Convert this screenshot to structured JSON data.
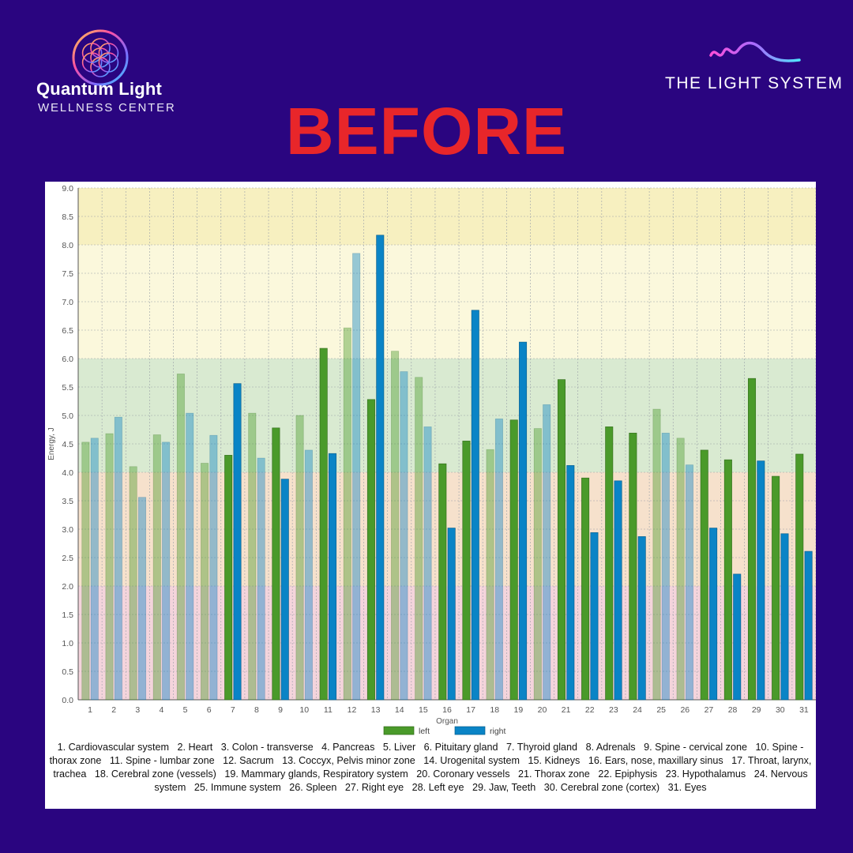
{
  "logos": {
    "left": {
      "name": "Quantum Light",
      "subtitle": "WELLNESS CENTER"
    },
    "right": {
      "name": "THE LIGHT SYSTEM"
    }
  },
  "headline": "BEFORE",
  "colors": {
    "background": "#2a0580",
    "headline": "#e8262a",
    "left_series": "#4a9a2a",
    "right_series": "#0a84c6",
    "zone_yellow_dark": "#f7f0c0",
    "zone_yellow_light": "#fbf8dc",
    "zone_green": "#d9ead1",
    "zone_orange": "#f6e1cc",
    "zone_pink": "#f4d4dc"
  },
  "chart_data": {
    "type": "bar",
    "ylabel": "Energy, J",
    "xlabel": "Organ",
    "ylim": [
      0,
      9
    ],
    "yticks": [
      "0.0",
      "0.5",
      "1.0",
      "1.5",
      "2.0",
      "2.5",
      "3.0",
      "3.5",
      "4.0",
      "4.5",
      "5.0",
      "5.5",
      "6.0",
      "6.5",
      "7.0",
      "7.5",
      "8.0",
      "8.5",
      "9.0"
    ],
    "grid": true,
    "legend_position": "bottom-center",
    "categories": [
      "1",
      "2",
      "3",
      "4",
      "5",
      "6",
      "7",
      "8",
      "9",
      "10",
      "11",
      "12",
      "13",
      "14",
      "15",
      "16",
      "17",
      "18",
      "19",
      "20",
      "21",
      "22",
      "23",
      "24",
      "25",
      "26",
      "27",
      "28",
      "29",
      "30",
      "31"
    ],
    "series": [
      {
        "name": "left",
        "values": [
          4.53,
          4.68,
          4.1,
          4.66,
          5.73,
          4.16,
          4.3,
          5.04,
          4.78,
          5.0,
          6.18,
          6.54,
          5.28,
          6.13,
          5.67,
          4.15,
          4.55,
          4.4,
          4.92,
          4.77,
          5.63,
          3.9,
          4.8,
          4.69,
          5.11,
          4.6,
          4.39,
          4.22,
          5.65,
          3.93,
          4.32
        ]
      },
      {
        "name": "right",
        "values": [
          4.6,
          4.97,
          3.56,
          4.53,
          5.04,
          4.65,
          5.56,
          4.25,
          3.88,
          4.39,
          4.33,
          7.85,
          8.17,
          5.77,
          4.8,
          3.02,
          6.85,
          4.94,
          6.29,
          5.19,
          4.12,
          2.94,
          3.85,
          2.87,
          4.69,
          4.13,
          3.02,
          2.21,
          4.2,
          2.92,
          2.61
        ]
      }
    ],
    "faded_bars": [
      1,
      2,
      3,
      4,
      5,
      6,
      8,
      10,
      12,
      14,
      15,
      18,
      20,
      25,
      26
    ],
    "zones": [
      {
        "from": 8.0,
        "to": 9.0,
        "color": "#f7f0c0"
      },
      {
        "from": 6.0,
        "to": 8.0,
        "color": "#fbf8dc"
      },
      {
        "from": 4.0,
        "to": 6.0,
        "color": "#d9ead1"
      },
      {
        "from": 2.0,
        "to": 4.0,
        "color": "#f6e1cc"
      },
      {
        "from": 0.0,
        "to": 2.0,
        "color": "#f4d4dc"
      }
    ],
    "organ_legend": [
      "1. Cardiovascular system",
      "2. Heart",
      "3. Colon - transverse",
      "4. Pancreas",
      "5. Liver",
      "6. Pituitary gland",
      "7. Thyroid gland",
      "8. Adrenals",
      "9. Spine - cervical zone",
      "10. Spine - thorax zone",
      "11. Spine - lumbar zone",
      "12. Sacrum",
      "13. Coccyx, Pelvis minor zone",
      "14. Urogenital system",
      "15. Kidneys",
      "16. Ears, nose, maxillary sinus",
      "17. Throat, larynx, trachea",
      "18. Cerebral zone (vessels)",
      "19. Mammary glands, Respiratory system",
      "20. Coronary vessels",
      "21. Thorax zone",
      "22. Epiphysis",
      "23. Hypothalamus",
      "24. Nervous system",
      "25. Immune system",
      "26. Spleen",
      "27. Right eye",
      "28. Left eye",
      "29. Jaw, Teeth",
      "30. Cerebral zone (cortex)",
      "31. Eyes"
    ]
  }
}
